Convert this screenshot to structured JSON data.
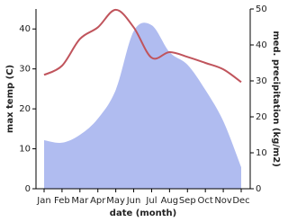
{
  "chart_data": {
    "type": "combo",
    "x_label": "date (month)",
    "y_label": "max temp (C)",
    "y2_label": "med. precipitation (kg/m2)",
    "categories": [
      "Jan",
      "Feb",
      "Mar",
      "Apr",
      "May",
      "Jun",
      "Jul",
      "Aug",
      "Sep",
      "Oct",
      "Nov",
      "Dec"
    ],
    "series": [
      {
        "name": "med. precipitation",
        "type": "area",
        "axis": "y2",
        "color": "#b0bcf0",
        "values": [
          13.5,
          12.8,
          15,
          19.5,
          27.5,
          43.8,
          45.5,
          38,
          34.5,
          27.5,
          18.8,
          6
        ]
      },
      {
        "name": "max temp",
        "type": "line",
        "axis": "y",
        "color": "#c0545c",
        "values": [
          28.5,
          30.8,
          37.5,
          40.4,
          44.8,
          40.4,
          32.8,
          34.2,
          33,
          31.5,
          29.9,
          26.7
        ]
      }
    ],
    "ylim": [
      0,
      45
    ],
    "yticks": [
      0,
      10,
      20,
      30,
      40
    ],
    "y2lim": [
      0,
      50
    ],
    "y2ticks": [
      0,
      10,
      20,
      30,
      40,
      50
    ]
  }
}
